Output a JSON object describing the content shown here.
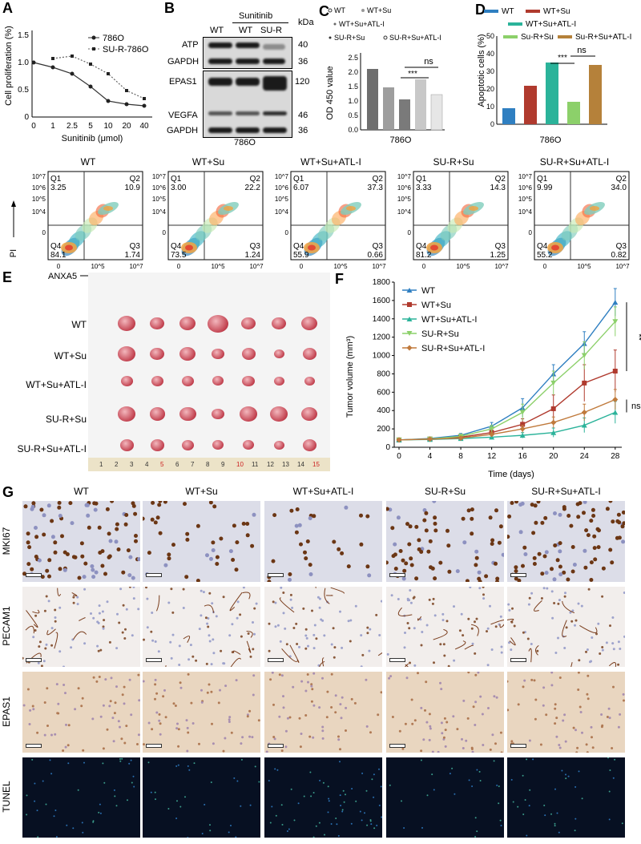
{
  "panels": {
    "A": "A",
    "B": "B",
    "C": "C",
    "D": "D",
    "E": "E",
    "F": "F",
    "G": "G"
  },
  "panelA": {
    "ylabel": "Cell proliferation (%)",
    "xlabel": "Sunitinib (μmol)",
    "yticks": [
      "0",
      "0.5",
      "1.0",
      "1.5"
    ],
    "xticks": [
      "0",
      "1",
      "2.5",
      "5",
      "10",
      "20",
      "40"
    ],
    "legend": [
      "786O",
      "SU-R-786O"
    ]
  },
  "panelB": {
    "header": "Sunitinib",
    "lanes": [
      "WT",
      "WT",
      "SU-R"
    ],
    "kda": "kDa",
    "rows": [
      "ATP",
      "GAPDH",
      "EPAS1",
      "VEGFA",
      "GAPDH"
    ],
    "markers": [
      "40",
      "36",
      "120",
      "46",
      "36"
    ],
    "footer": "786O"
  },
  "panelC": {
    "ylabel": "OD 450 value",
    "yticks": [
      "0.0",
      "0.5",
      "1.0",
      "1.5",
      "2.0",
      "2.5"
    ],
    "legend": [
      "WT",
      "WT+Su",
      "WT+Su+ATL-I",
      "SU-R+Su",
      "SU-R+Su+ATL-I"
    ],
    "sig1": "***",
    "sig2": "ns",
    "xlabel": "786O"
  },
  "panelD": {
    "ylabel": "Apoptotic cells (%)",
    "yticks": [
      "0",
      "10",
      "20",
      "30",
      "40",
      "50"
    ],
    "legend": [
      "WT",
      "WT+Su",
      "WT+Su+ATL-I",
      "Su-R+Su",
      "Su-R+Su+ATL-I"
    ],
    "sig1": "***",
    "sig2": "ns",
    "xlabel": "786O"
  },
  "flow": {
    "groups": [
      {
        "title": "WT",
        "q1": "3.25",
        "q2": "10.9",
        "q4": "84.1",
        "q3": "1.74"
      },
      {
        "title": "WT+Su",
        "q1": "3.00",
        "q2": "22.2",
        "q4": "73.5",
        "q3": "1.24"
      },
      {
        "title": "WT+Su+ATL-I",
        "q1": "6.07",
        "q2": "37.3",
        "q4": "55.9",
        "q3": "0.66"
      },
      {
        "title": "SU-R+Su",
        "q1": "3.33",
        "q2": "14.3",
        "q4": "81.2",
        "q3": "1.25"
      },
      {
        "title": "SU-R+Su+ATL-I",
        "q1": "9.99",
        "q2": "34.0",
        "q4": "55.2",
        "q3": "0.82"
      }
    ],
    "quad_names": [
      "Q1",
      "Q2",
      "Q4",
      "Q3"
    ],
    "yticks": [
      "10^7",
      "10^6",
      "10^5",
      "10^4",
      "0"
    ],
    "xticks": [
      "0",
      "10^5",
      "10^7"
    ],
    "ylabel": "PI",
    "xlabel": "ANXA5"
  },
  "panelE": {
    "rows": [
      "WT",
      "WT+Su",
      "WT+Su+ATL-I",
      "SU-R+Su",
      "SU-R+Su+ATL-I"
    ],
    "ruler": [
      "1",
      "2",
      "3",
      "4",
      "5",
      "6",
      "7",
      "8",
      "9",
      "10",
      "11",
      "12",
      "13",
      "14",
      "15"
    ]
  },
  "chart_data": {
    "type": "line",
    "ylabel": "Tumor volume (mm³)",
    "xlabel": "Time (days)",
    "x": [
      0,
      4,
      8,
      12,
      16,
      20,
      24,
      28
    ],
    "ylim": [
      0,
      1800
    ],
    "yticks": [
      0,
      200,
      400,
      600,
      800,
      1000,
      1200,
      1400,
      1600,
      1800
    ],
    "series": [
      {
        "name": "WT",
        "color": "#2f7fc1",
        "values": [
          80,
          95,
          130,
          230,
          430,
          800,
          1130,
          1580
        ],
        "err": [
          10,
          12,
          20,
          40,
          100,
          100,
          130,
          150
        ]
      },
      {
        "name": "WT+Su",
        "color": "#b03a2e",
        "values": [
          80,
          90,
          110,
          160,
          250,
          420,
          700,
          830
        ],
        "err": [
          10,
          10,
          15,
          30,
          60,
          150,
          200,
          230
        ]
      },
      {
        "name": "WT+Su+ATL-I",
        "color": "#2bb39a",
        "values": [
          80,
          85,
          95,
          110,
          130,
          160,
          240,
          380
        ],
        "err": [
          8,
          8,
          10,
          20,
          30,
          50,
          80,
          120
        ]
      },
      {
        "name": "SU-R+Su",
        "color": "#8cd06a",
        "values": [
          80,
          90,
          120,
          200,
          380,
          700,
          1000,
          1370
        ],
        "err": [
          10,
          12,
          20,
          40,
          90,
          130,
          150,
          160
        ]
      },
      {
        "name": "SU-R+Su+ATL-I",
        "color": "#c07a3c",
        "values": [
          80,
          88,
          100,
          140,
          200,
          270,
          380,
          520
        ],
        "err": [
          8,
          10,
          15,
          25,
          40,
          60,
          90,
          110
        ]
      }
    ],
    "sig1": "**",
    "sig2": "ns"
  },
  "panelG": {
    "cols": [
      "WT",
      "WT+Su",
      "WT+Su+ATL-I",
      "SU-R+Su",
      "SU-R+Su+ATL-I"
    ],
    "rows": [
      "MKI67",
      "PECAM1",
      "EPAS1",
      "TUNEL"
    ]
  },
  "colors": {
    "wt": "#2f7fc1",
    "wtsu": "#b03a2e",
    "atl": "#2bb39a",
    "sur": "#8cd06a",
    "surlatl": "#b5813a"
  }
}
